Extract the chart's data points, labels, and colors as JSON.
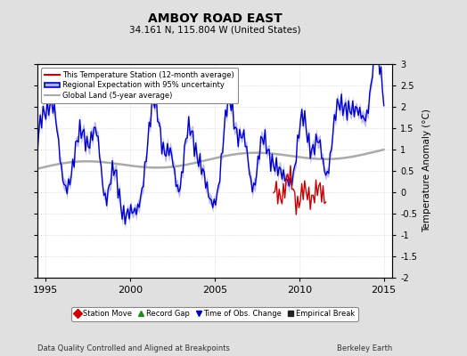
{
  "title": "AMBOY ROAD EAST",
  "subtitle": "34.161 N, 115.804 W (United States)",
  "ylabel": "Temperature Anomaly (°C)",
  "xlabel_left": "Data Quality Controlled and Aligned at Breakpoints",
  "xlabel_right": "Berkeley Earth",
  "ylim": [
    -2.0,
    3.0
  ],
  "xlim": [
    1994.5,
    2015.5
  ],
  "yticks": [
    -2,
    -1.5,
    -1,
    -0.5,
    0,
    0.5,
    1,
    1.5,
    2,
    2.5,
    3
  ],
  "xticks": [
    1995,
    2000,
    2005,
    2010,
    2015
  ],
  "bg_color": "#e0e0e0",
  "plot_bg_color": "#ffffff",
  "regional_color": "#0000cc",
  "regional_fill_color": "#aaaaee",
  "station_color": "#cc0000",
  "global_color": "#aaaaaa",
  "legend_items": [
    {
      "label": "This Temperature Station (12-month average)",
      "color": "#cc0000"
    },
    {
      "label": "Regional Expectation with 95% uncertainty",
      "color": "#0000cc",
      "fill": "#aaaaee"
    },
    {
      "label": "Global Land (5-year average)",
      "color": "#aaaaaa"
    }
  ],
  "marker_items": [
    {
      "label": "Station Move",
      "color": "#cc0000",
      "marker": "D"
    },
    {
      "label": "Record Gap",
      "color": "#228822",
      "marker": "^"
    },
    {
      "label": "Time of Obs. Change",
      "color": "#0000cc",
      "marker": "v"
    },
    {
      "label": "Empirical Break",
      "color": "#222222",
      "marker": "s"
    }
  ]
}
